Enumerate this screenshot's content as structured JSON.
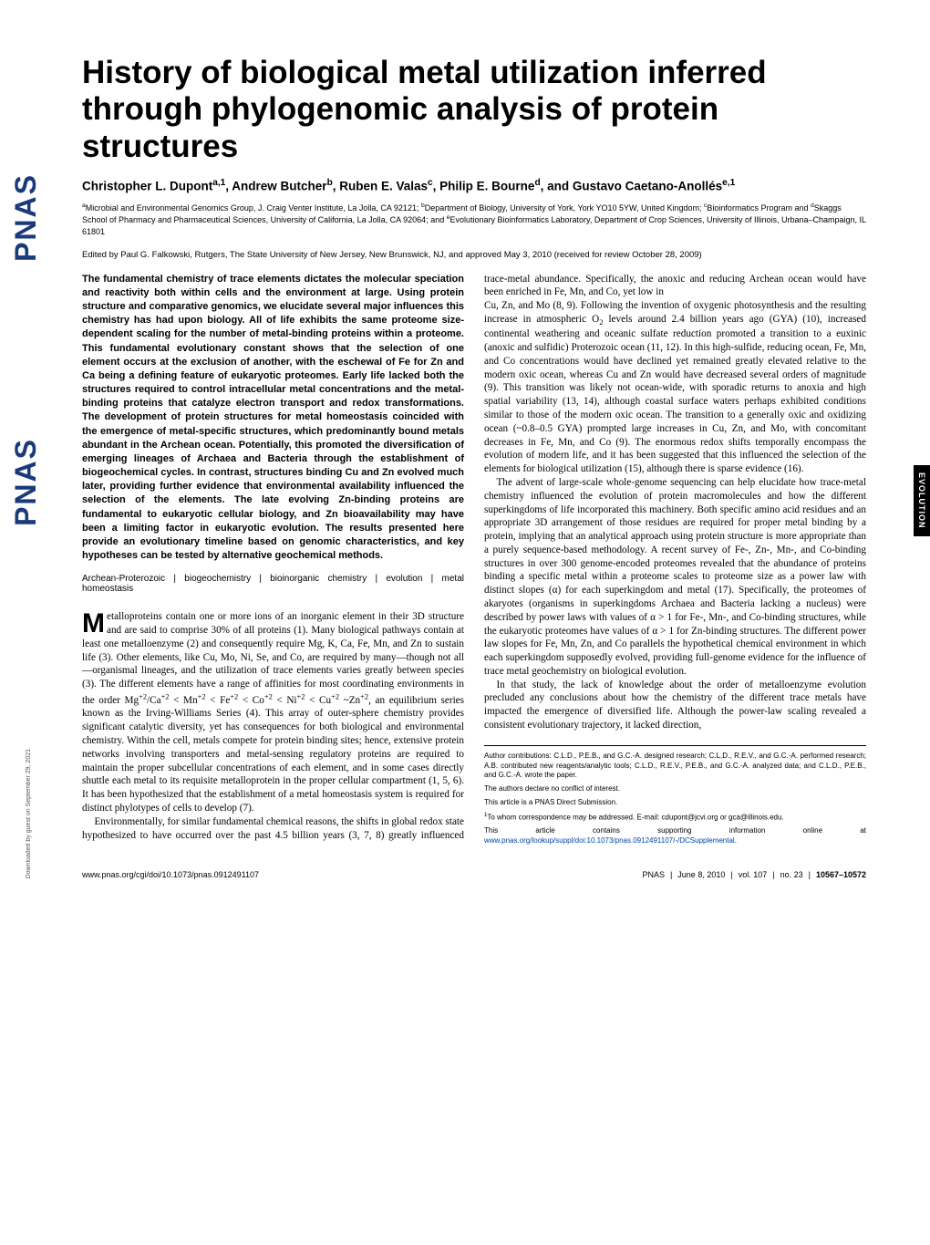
{
  "meta": {
    "journal_logo": "PNAS",
    "section_tab": "EVOLUTION",
    "download_note": "Downloaded by guest on September 29, 2021"
  },
  "title": "History of biological metal utilization inferred through phylogenomic analysis of protein structures",
  "authors_html": "Christopher L. Dupont<sup>a,1</sup>, Andrew Butcher<sup>b</sup>, Ruben E. Valas<sup>c</sup>, Philip E. Bourne<sup>d</sup>, and Gustavo Caetano-Anollés<sup>e,1</sup>",
  "affiliations_html": "<sup>a</sup>Microbial and Environmental Genomics Group, J. Craig Venter Institute, La Jolla, CA 92121; <sup>b</sup>Department of Biology, University of York, York YO10 5YW, United Kingdom; <sup>c</sup>Bioinformatics Program and <sup>d</sup>Skaggs School of Pharmacy and Pharmaceutical Sciences, University of California, La Jolla, CA 92064; and <sup>e</sup>Evolutionary Bioinformatics Laboratory, Department of Crop Sciences, University of Illinois, Urbana–Champaign, IL 61801",
  "edited_by": "Edited by Paul G. Falkowski, Rutgers, The State University of New Jersey, New Brunswick, NJ, and approved May 3, 2010 (received for review October 28, 2009)",
  "abstract": "The fundamental chemistry of trace elements dictates the molecular speciation and reactivity both within cells and the environment at large. Using protein structure and comparative genomics, we elucidate several major influences this chemistry has had upon biology. All of life exhibits the same proteome size-dependent scaling for the number of metal-binding proteins within a proteome. This fundamental evolutionary constant shows that the selection of one element occurs at the exclusion of another, with the eschewal of Fe for Zn and Ca being a defining feature of eukaryotic proteomes. Early life lacked both the structures required to control intracellular metal concentrations and the metal-binding proteins that catalyze electron transport and redox transformations. The development of protein structures for metal homeostasis coincided with the emergence of metal-specific structures, which predominantly bound metals abundant in the Archean ocean. Potentially, this promoted the diversification of emerging lineages of Archaea and Bacteria through the establishment of biogeochemical cycles. In contrast, structures binding Cu and Zn evolved much later, providing further evidence that environmental availability influenced the selection of the elements. The late evolving Zn-binding proteins are fundamental to eukaryotic cellular biology, and Zn bioavailability may have been a limiting factor in eukaryotic evolution. The results presented here provide an evolutionary timeline based on genomic characteristics, and key hypotheses can be tested by alternative geochemical methods.",
  "keywords": "Archean-Proterozoic | biogeochemistry | bioinorganic chemistry | evolution | metal homeostasis",
  "body": {
    "p1_html": "etalloproteins contain one or more ions of an inorganic element in their 3D structure and are said to comprise 30% of all proteins (1). Many biological pathways contain at least one metalloenzyme (2) and consequently require Mg, K, Ca, Fe, Mn, and Zn to sustain life (3). Other elements, like Cu, Mo, Ni, Se, and Co, are required by many—though not all—organismal lineages, and the utilization of trace elements varies greatly between species (3). The different elements have a range of affinities for most coordinating environments in the order Mg<sup>+2</sup>/Ca<sup>+2</sup> < Mn<sup>+2</sup> < Fe<sup>+2</sup> < Co<sup>+2</sup> < Ni<sup>+2</sup> < Cu<sup>+2</sup> ~Zn<sup>+2</sup>, an equilibrium series known as the Irving-Williams Series (4). This array of outer-sphere chemistry provides significant catalytic diversity, yet has consequences for both biological and environmental chemistry. Within the cell, metals compete for protein binding sites; hence, extensive protein networks involving transporters and metal-sensing regulatory proteins are required to maintain the proper subcellular concentrations of each element, and in some cases directly shuttle each metal to its requisite metalloprotein in the proper cellular compartment (1, 5, 6). It has been hypothesized that the establishment of a metal homeostasis system is required for distinct phylotypes of cells to develop (7).",
    "p2": "Environmentally, for similar fundamental chemical reasons, the shifts in global redox state hypothesized to have occurred over the past 4.5 billion years (3, 7, 8) greatly influenced trace-metal abundance. Specifically, the anoxic and reducing Archean ocean would have been enriched in Fe, Mn, and Co, yet low in",
    "p3_html": "Cu, Zn, and Mo (8, 9). Following the invention of oxygenic photosynthesis and the resulting increase in atmospheric O<sub>2</sub> levels around 2.4 billion years ago (GYA) (10), increased continental weathering and oceanic sulfate reduction promoted a transition to a euxinic (anoxic and sulfidic) Proterozoic ocean (11, 12). In this high-sulfide, reducing ocean, Fe, Mn, and Co concentrations would have declined yet remained greatly elevated relative to the modern oxic ocean, whereas Cu and Zn would have decreased several orders of magnitude (9). This transition was likely not ocean-wide, with sporadic returns to anoxia and high spatial variability (13, 14), although coastal surface waters perhaps exhibited conditions similar to those of the modern oxic ocean. The transition to a generally oxic and oxidizing ocean (~0.8–0.5 GYA) prompted large increases in Cu, Zn, and Mo, with concomitant decreases in Fe, Mn, and Co (9). The enormous redox shifts temporally encompass the evolution of modern life, and it has been suggested that this influenced the selection of the elements for biological utilization (15), although there is sparse evidence (16).",
    "p4": "The advent of large-scale whole-genome sequencing can help elucidate how trace-metal chemistry influenced the evolution of protein macromolecules and how the different superkingdoms of life incorporated this machinery. Both specific amino acid residues and an appropriate 3D arrangement of those residues are required for proper metal binding by a protein, implying that an analytical approach using protein structure is more appropriate than a purely sequence-based methodology. A recent survey of Fe-, Zn-, Mn-, and Co-binding structures in over 300 genome-encoded proteomes revealed that the abundance of proteins binding a specific metal within a proteome scales to proteome size as a power law with distinct slopes (α) for each superkingdom and metal (17). Specifically, the proteomes of akaryotes (organisms in superkingdoms Archaea and Bacteria lacking a nucleus) were described by power laws with values of α > 1 for Fe-, Mn-, and Co-binding structures, while the eukaryotic proteomes have values of α > 1 for Zn-binding structures. The different power law slopes for Fe, Mn, Zn, and Co parallels the hypothetical chemical environment in which each superkingdom supposedly evolved, providing full-genome evidence for the influence of trace metal geochemistry on biological evolution.",
    "p5": "In that study, the lack of knowledge about the order of metalloenzyme evolution precluded any conclusions about how the chemistry of the different trace metals have impacted the emergence of diversified life. Although the power-law scaling revealed a consistent evolutionary trajectory, it lacked direction,"
  },
  "footnotes": {
    "contributions": "Author contributions: C.L.D., P.E.B., and G.C.-A. designed research; C.L.D., R.E.V., and G.C.-A. performed research; A.B. contributed new reagents/analytic tools; C.L.D., R.E.V., P.E.B., and G.C.-A. analyzed data; and C.L.D., P.E.B., and G.C.-A. wrote the paper.",
    "conflict": "The authors declare no conflict of interest.",
    "submission": "This article is a PNAS Direct Submission.",
    "correspondence_html": "<sup>1</sup>To whom correspondence may be addressed. E-mail: cdupont@jcvi.org or gca@illinois.edu.",
    "supplemental_prefix": "This article contains supporting information online at ",
    "supplemental_link": "www.pnas.org/lookup/suppl/doi:10.1073/pnas.0912491107/-/DCSupplemental",
    "supplemental_suffix": "."
  },
  "footer": {
    "left": "www.pnas.org/cgi/doi/10.1073/pnas.0912491107",
    "right_journal": "PNAS",
    "right_date": "June 8, 2010",
    "right_vol": "vol. 107",
    "right_issue": "no. 23",
    "right_pages": "10567–10572"
  },
  "colors": {
    "text": "#000000",
    "background": "#ffffff",
    "logo": "#1a3a7a",
    "link": "#0044aa"
  },
  "dropcap_letter": "M"
}
